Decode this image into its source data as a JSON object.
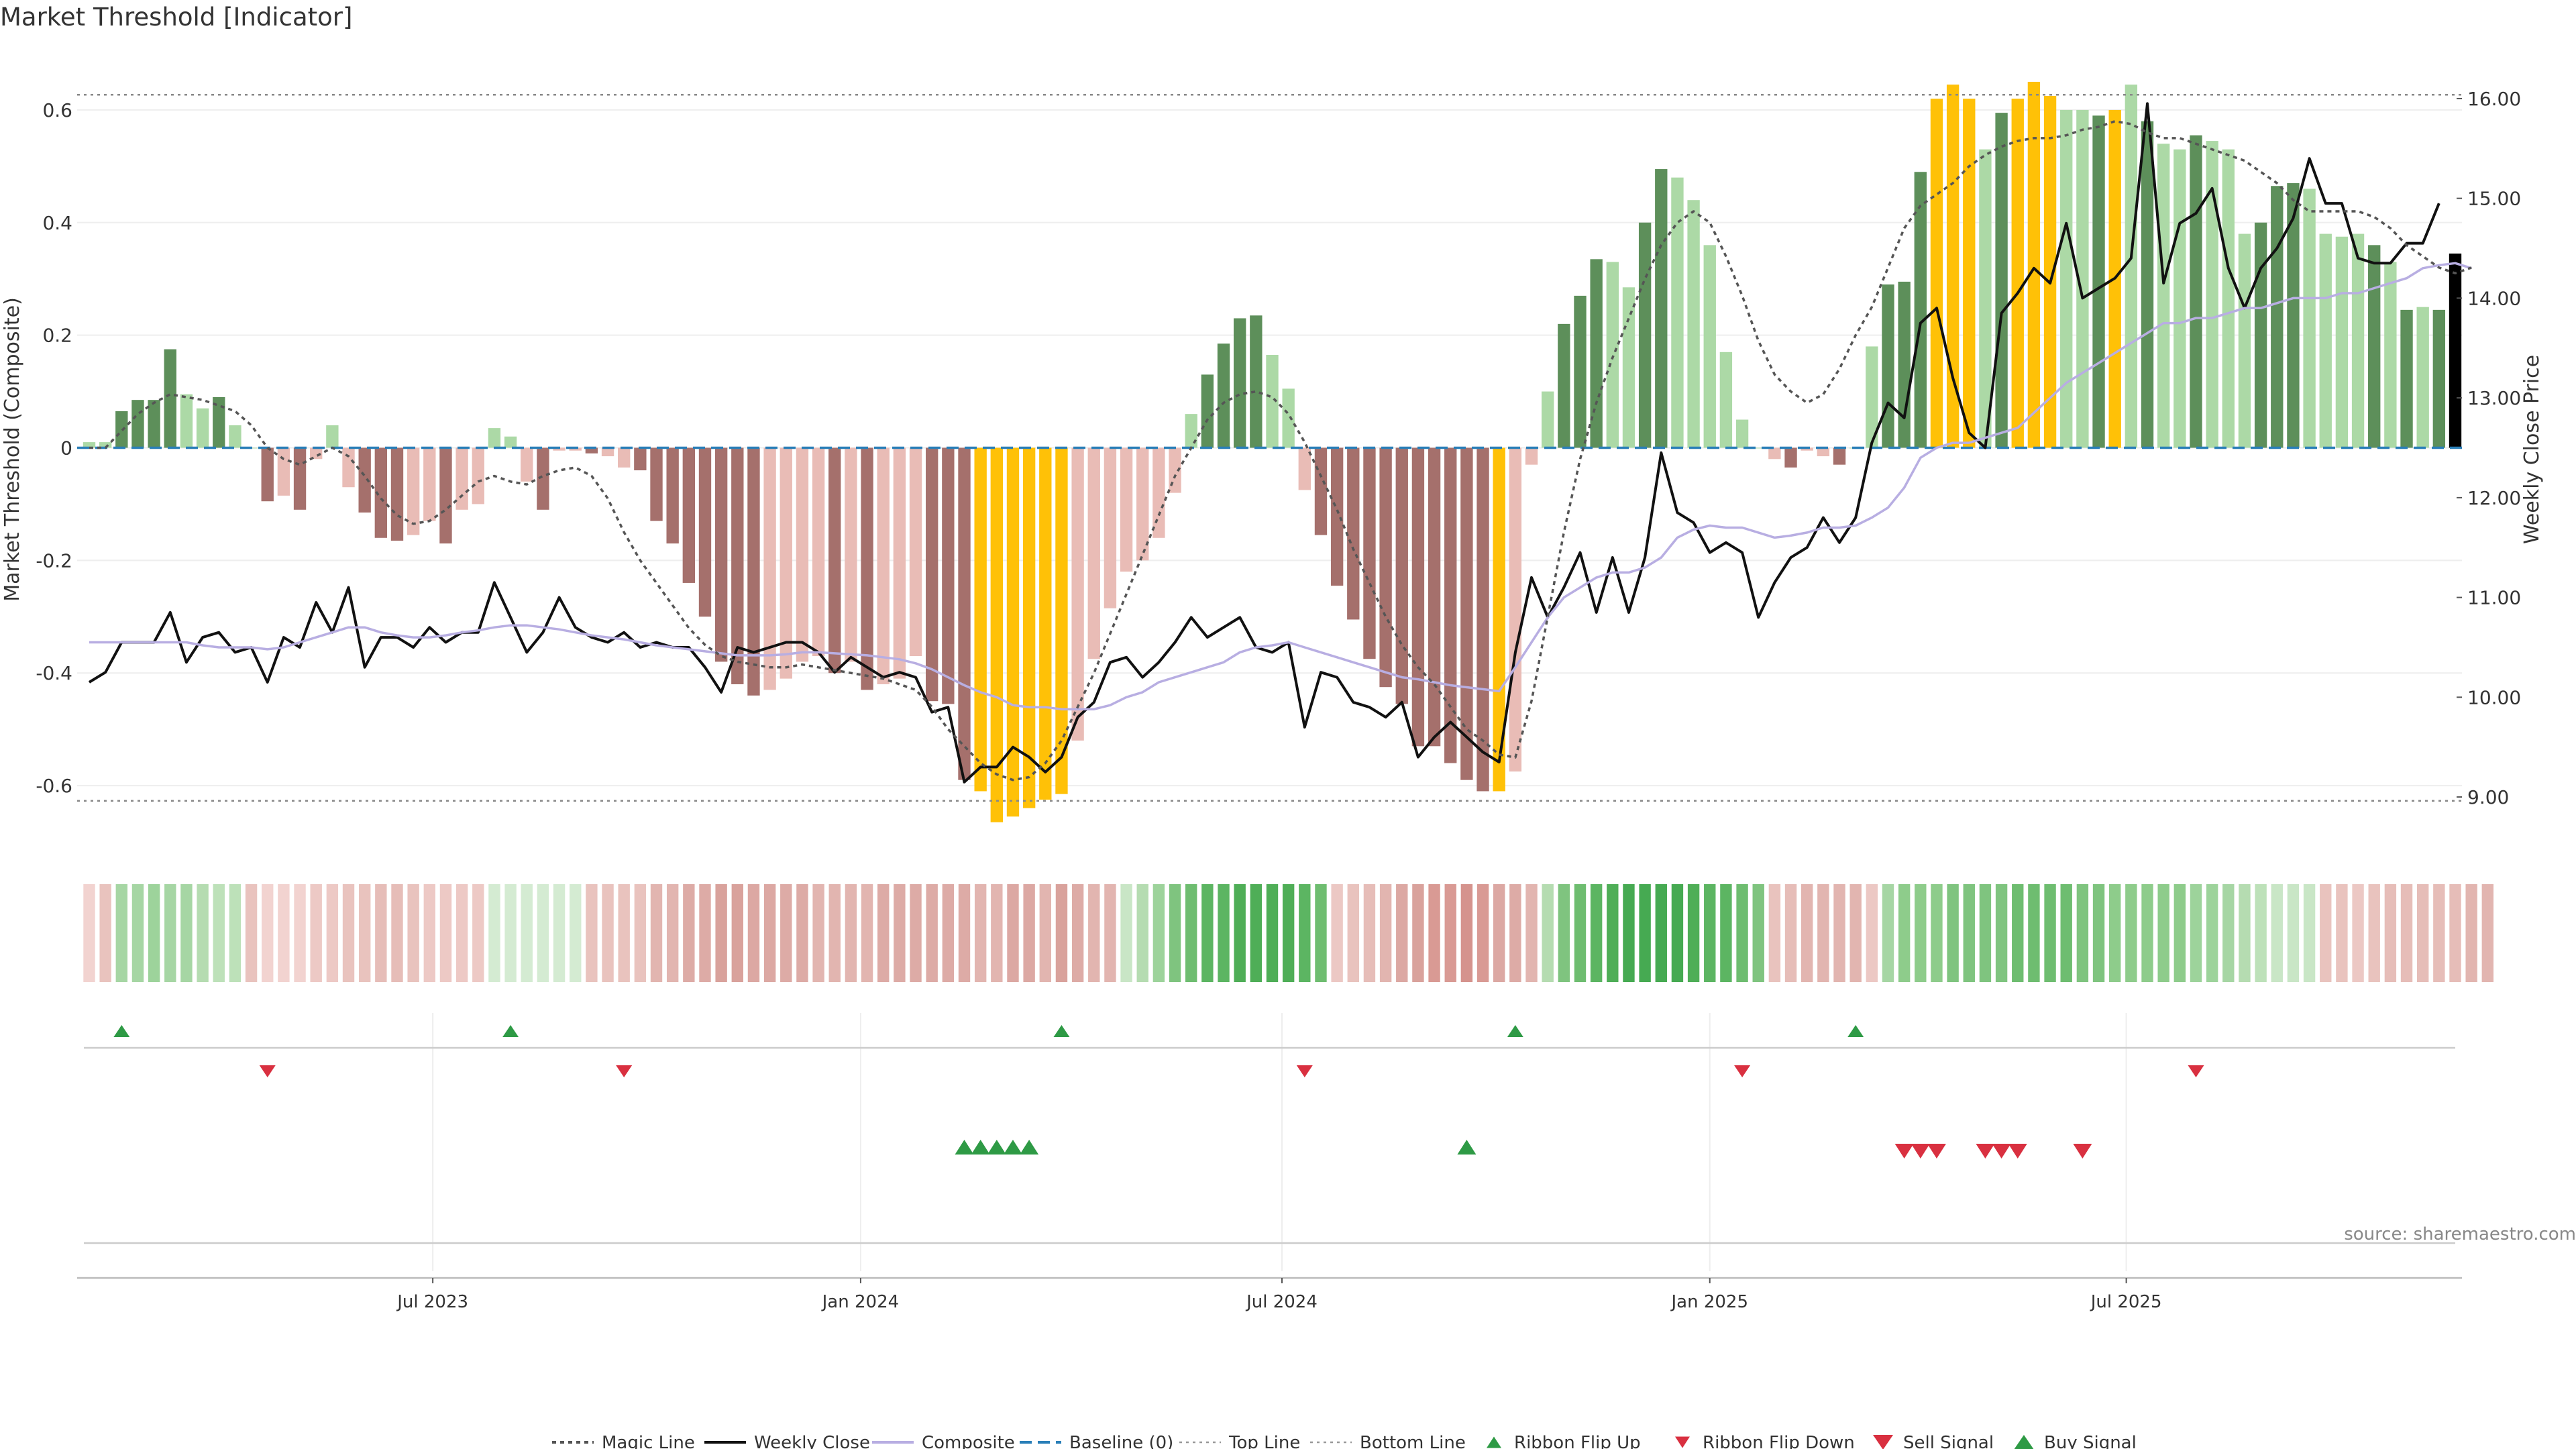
{
  "title": "Market Threshold [Indicator]",
  "source": "source: sharemaestro.com",
  "colors": {
    "buy_signal": "#2e9a45",
    "sell_signal": "#d93040",
    "yellow": "#ffc107",
    "dark_green": "#5d8f5a",
    "light_green": "#acd9a6",
    "dark_red": "#a5706c",
    "light_red": "#e9bcb6",
    "composite": "#b8aee2",
    "baseline": "#2a7fb8"
  },
  "chart_data": {
    "type": "bar",
    "ylabel_left": "Market Threshold (Composite)",
    "ylabel_right": "Weekly Close Price",
    "ylim_left": [
      -0.7,
      0.7
    ],
    "ylim_right": [
      8.55,
      16.45
    ],
    "left_ticks": [
      "-0.6",
      "-0.4",
      "-0.2",
      "0",
      "0.2",
      "0.4",
      "0.6"
    ],
    "right_ticks": [
      "9.00",
      "10.00",
      "11.00",
      "12.00",
      "13.00",
      "14.00",
      "15.00",
      "16.00"
    ],
    "x_ticks": [
      "Jul 2023",
      "Jan 2024",
      "Jul 2024",
      "Jan 2025",
      "Jul 2025"
    ],
    "x_tick_weeks": [
      21.2,
      47.6,
      73.6,
      100.0,
      125.7
    ],
    "top_line": 0.627,
    "bottom_line": -0.627,
    "grid": true,
    "legend": {
      "placement": "bottom-center",
      "items": [
        "Magic Line",
        "Weekly Close",
        "Composite",
        "Baseline (0)",
        "Top Line",
        "Bottom Line",
        "Ribbon Flip Up",
        "Ribbon Flip Down",
        "Sell Signal",
        "Buy Signal"
      ]
    },
    "bars": [
      0.01,
      0.01,
      0.065,
      0.085,
      0.085,
      0.175,
      0.095,
      0.07,
      0.09,
      0.04,
      0.0,
      -0.095,
      -0.085,
      -0.11,
      -0.02,
      0.04,
      -0.07,
      -0.115,
      -0.16,
      -0.165,
      -0.155,
      -0.13,
      -0.17,
      -0.11,
      -0.1,
      0.035,
      0.02,
      -0.06,
      -0.11,
      -0.005,
      -0.005,
      -0.01,
      -0.015,
      -0.035,
      -0.04,
      -0.13,
      -0.17,
      -0.24,
      -0.3,
      -0.38,
      -0.42,
      -0.44,
      -0.43,
      -0.41,
      -0.38,
      -0.37,
      -0.4,
      -0.38,
      -0.43,
      -0.42,
      -0.41,
      -0.37,
      -0.45,
      -0.455,
      -0.59,
      -0.61,
      -0.665,
      -0.655,
      -0.64,
      -0.625,
      -0.615,
      -0.52,
      -0.375,
      -0.285,
      -0.22,
      -0.2,
      -0.16,
      -0.08,
      0.06,
      0.13,
      0.185,
      0.23,
      0.235,
      0.165,
      0.105,
      -0.075,
      -0.155,
      -0.245,
      -0.305,
      -0.375,
      -0.425,
      -0.455,
      -0.53,
      -0.53,
      -0.56,
      -0.59,
      -0.61,
      -0.61,
      -0.575,
      -0.03,
      0.1,
      0.22,
      0.27,
      0.335,
      0.33,
      0.285,
      0.4,
      0.495,
      0.48,
      0.44,
      0.36,
      0.17,
      0.05,
      0.0,
      -0.02,
      -0.035,
      -0.005,
      -0.015,
      -0.03,
      0.0,
      0.18,
      0.29,
      0.295,
      0.49,
      0.62,
      0.645,
      0.62,
      0.53,
      0.595,
      0.62,
      0.65,
      0.625,
      0.6,
      0.6,
      0.59,
      0.6,
      0.645,
      0.58,
      0.54,
      0.53,
      0.555,
      0.545,
      0.53,
      0.38,
      0.4,
      0.465,
      0.47,
      0.46,
      0.38,
      0.375,
      0.38,
      0.36,
      0.33,
      0.245,
      0.25,
      0.245,
      0.345
    ],
    "bar_colors": [
      "light_green",
      "light_green",
      "dark_green",
      "dark_green",
      "dark_green",
      "dark_green",
      "light_green",
      "light_green",
      "dark_green",
      "light_green",
      "light_green",
      "dark_red",
      "light_red",
      "dark_red",
      "light_red",
      "light_green",
      "light_red",
      "dark_red",
      "dark_red",
      "dark_red",
      "light_red",
      "light_red",
      "dark_red",
      "light_red",
      "light_red",
      "light_green",
      "light_green",
      "light_red",
      "dark_red",
      "light_red",
      "light_red",
      "dark_red",
      "light_red",
      "light_red",
      "dark_red",
      "dark_red",
      "dark_red",
      "dark_red",
      "dark_red",
      "dark_red",
      "dark_red",
      "dark_red",
      "light_red",
      "light_red",
      "light_red",
      "light_red",
      "dark_red",
      "light_red",
      "dark_red",
      "light_red",
      "light_red",
      "light_red",
      "dark_red",
      "dark_red",
      "dark_red",
      "yellow",
      "yellow",
      "yellow",
      "yellow",
      "yellow",
      "yellow",
      "light_red",
      "light_red",
      "light_red",
      "light_red",
      "light_red",
      "light_red",
      "light_red",
      "light_green",
      "dark_green",
      "dark_green",
      "dark_green",
      "dark_green",
      "light_green",
      "light_green",
      "light_red",
      "dark_red",
      "dark_red",
      "dark_red",
      "dark_red",
      "dark_red",
      "dark_red",
      "dark_red",
      "dark_red",
      "dark_red",
      "dark_red",
      "dark_red",
      "yellow",
      "light_red",
      "light_red",
      "light_green",
      "dark_green",
      "dark_green",
      "dark_green",
      "light_green",
      "light_green",
      "dark_green",
      "dark_green",
      "light_green",
      "light_green",
      "light_green",
      "light_green",
      "light_green",
      "light_green",
      "light_red",
      "dark_red",
      "light_red",
      "light_red",
      "dark_red",
      "light_green",
      "light_green",
      "dark_green",
      "dark_green",
      "dark_green",
      "yellow",
      "yellow",
      "yellow",
      "light_green",
      "dark_green",
      "yellow",
      "yellow",
      "yellow",
      "light_green",
      "light_green",
      "dark_green",
      "yellow",
      "light_green",
      "dark_green",
      "light_green",
      "light_green",
      "dark_green",
      "light_green",
      "light_green",
      "light_green",
      "dark_green",
      "dark_green",
      "dark_green",
      "light_green",
      "light_green",
      "light_green",
      "light_green",
      "dark_green",
      "light_green",
      "dark_green",
      "light_green",
      "dark_green"
    ],
    "series": [
      {
        "name": "Weekly Close",
        "axis": "right",
        "values": [
          10.15,
          10.25,
          10.55,
          10.55,
          10.55,
          10.85,
          10.35,
          10.6,
          10.65,
          10.45,
          10.5,
          10.15,
          10.6,
          10.5,
          10.95,
          10.65,
          11.1,
          10.3,
          10.6,
          10.6,
          10.5,
          10.7,
          10.55,
          10.65,
          10.65,
          11.15,
          10.8,
          10.45,
          10.65,
          11.0,
          10.7,
          10.6,
          10.55,
          10.65,
          10.5,
          10.55,
          10.5,
          10.5,
          10.3,
          10.05,
          10.5,
          10.45,
          10.5,
          10.55,
          10.55,
          10.45,
          10.25,
          10.4,
          10.3,
          10.2,
          10.25,
          10.2,
          9.85,
          9.9,
          9.15,
          9.3,
          9.3,
          9.5,
          9.4,
          9.25,
          9.4,
          9.8,
          9.95,
          10.35,
          10.4,
          10.2,
          10.35,
          10.55,
          10.8,
          10.6,
          10.7,
          10.8,
          10.5,
          10.45,
          10.55,
          9.7,
          10.25,
          10.2,
          9.95,
          9.9,
          9.8,
          9.95,
          9.4,
          9.6,
          9.75,
          9.6,
          9.45,
          9.35,
          10.45,
          11.2,
          10.8,
          11.1,
          11.45,
          10.85,
          11.4,
          10.85,
          11.4,
          12.45,
          11.85,
          11.75,
          11.45,
          11.55,
          11.45,
          10.8,
          11.15,
          11.4,
          11.5,
          11.8,
          11.55,
          11.8,
          12.55,
          12.95,
          12.8,
          13.75,
          13.9,
          13.2,
          12.65,
          12.5,
          13.85,
          14.05,
          14.3,
          14.15,
          14.75,
          14.0,
          14.1,
          14.2,
          14.4,
          15.95,
          14.15,
          14.75,
          14.85,
          15.1,
          14.3,
          13.9,
          14.3,
          14.5,
          14.8,
          15.4,
          14.95,
          14.95,
          14.4,
          14.35,
          14.35,
          14.55,
          14.55,
          14.95
        ],
        "color": "#111111"
      },
      {
        "name": "Composite",
        "axis": "right",
        "values": [
          10.55,
          10.55,
          10.55,
          10.55,
          10.55,
          10.55,
          10.55,
          10.52,
          10.5,
          10.5,
          10.5,
          10.48,
          10.5,
          10.55,
          10.6,
          10.65,
          10.7,
          10.7,
          10.65,
          10.62,
          10.6,
          10.6,
          10.62,
          10.65,
          10.67,
          10.7,
          10.72,
          10.72,
          10.7,
          10.68,
          10.65,
          10.62,
          10.6,
          10.58,
          10.55,
          10.52,
          10.5,
          10.48,
          10.46,
          10.44,
          10.42,
          10.42,
          10.42,
          10.43,
          10.45,
          10.45,
          10.44,
          10.43,
          10.42,
          10.4,
          10.38,
          10.34,
          10.28,
          10.2,
          10.12,
          10.05,
          10.0,
          9.92,
          9.9,
          9.9,
          9.88,
          9.88,
          9.88,
          9.92,
          10.0,
          10.05,
          10.15,
          10.2,
          10.25,
          10.3,
          10.35,
          10.45,
          10.5,
          10.52,
          10.55,
          10.5,
          10.45,
          10.4,
          10.35,
          10.3,
          10.25,
          10.2,
          10.18,
          10.15,
          10.12,
          10.1,
          10.08,
          10.06,
          10.3,
          10.55,
          10.8,
          11.0,
          11.1,
          11.2,
          11.25,
          11.25,
          11.3,
          11.4,
          11.6,
          11.68,
          11.72,
          11.7,
          11.7,
          11.65,
          11.6,
          11.62,
          11.65,
          11.7,
          11.7,
          11.72,
          11.8,
          11.9,
          12.1,
          12.4,
          12.5,
          12.55,
          12.55,
          12.6,
          12.65,
          12.7,
          12.85,
          13.0,
          13.15,
          13.25,
          13.35,
          13.45,
          13.55,
          13.65,
          13.75,
          13.75,
          13.8,
          13.8,
          13.85,
          13.9,
          13.9,
          13.95,
          14.0,
          14.0,
          14.0,
          14.05,
          14.05,
          14.1,
          14.15,
          14.2,
          14.3,
          14.33,
          14.35,
          14.3
        ],
        "color": "#b8aee2"
      },
      {
        "name": "Magic Line",
        "axis": "left",
        "values": [
          0.0,
          0.0,
          0.03,
          0.06,
          0.08,
          0.095,
          0.09,
          0.085,
          0.075,
          0.065,
          0.04,
          0.0,
          -0.02,
          -0.03,
          -0.015,
          0.0,
          -0.015,
          -0.05,
          -0.09,
          -0.12,
          -0.135,
          -0.13,
          -0.11,
          -0.085,
          -0.06,
          -0.05,
          -0.06,
          -0.065,
          -0.05,
          -0.04,
          -0.035,
          -0.05,
          -0.09,
          -0.15,
          -0.2,
          -0.24,
          -0.28,
          -0.32,
          -0.35,
          -0.37,
          -0.38,
          -0.385,
          -0.39,
          -0.39,
          -0.385,
          -0.39,
          -0.395,
          -0.4,
          -0.405,
          -0.41,
          -0.42,
          -0.43,
          -0.46,
          -0.5,
          -0.53,
          -0.56,
          -0.58,
          -0.59,
          -0.585,
          -0.56,
          -0.52,
          -0.46,
          -0.4,
          -0.33,
          -0.26,
          -0.19,
          -0.12,
          -0.05,
          0.0,
          0.05,
          0.08,
          0.095,
          0.1,
          0.09,
          0.06,
          0.01,
          -0.05,
          -0.11,
          -0.18,
          -0.24,
          -0.3,
          -0.35,
          -0.39,
          -0.42,
          -0.46,
          -0.5,
          -0.52,
          -0.545,
          -0.55,
          -0.45,
          -0.3,
          -0.15,
          -0.02,
          0.08,
          0.16,
          0.23,
          0.3,
          0.36,
          0.4,
          0.42,
          0.4,
          0.34,
          0.27,
          0.19,
          0.13,
          0.1,
          0.08,
          0.095,
          0.14,
          0.2,
          0.25,
          0.32,
          0.39,
          0.43,
          0.45,
          0.47,
          0.5,
          0.52,
          0.535,
          0.545,
          0.55,
          0.55,
          0.555,
          0.565,
          0.57,
          0.58,
          0.575,
          0.56,
          0.55,
          0.55,
          0.54,
          0.53,
          0.52,
          0.51,
          0.49,
          0.47,
          0.44,
          0.42,
          0.42,
          0.42,
          0.42,
          0.41,
          0.39,
          0.36,
          0.34,
          0.32,
          0.31,
          0.32
        ],
        "color": "#555555"
      }
    ],
    "ribbon_colors": [
      "#f2d3d0",
      "#e9c3be",
      "#a6d6a4",
      "#a6d6a4",
      "#9dd39b",
      "#a6d6a4",
      "#a6d6a4",
      "#b5dcb1",
      "#bde1b9",
      "#bde1b9",
      "#e9c3be",
      "#f2d3d0",
      "#f2d3d0",
      "#f2d3d0",
      "#edc9c5",
      "#edc9c5",
      "#e9c3be",
      "#e9c3be",
      "#e6bdb8",
      "#e6bdb8",
      "#e9c3be",
      "#edc9c5",
      "#edc9c5",
      "#edc9c5",
      "#edc9c5",
      "#d4ebd2",
      "#d4ebd2",
      "#d4ebd2",
      "#d4ebd2",
      "#d4ebd2",
      "#d4ebd2",
      "#e9c3be",
      "#e9c3be",
      "#e9c3be",
      "#e9c3be",
      "#e2b5b0",
      "#e2b5b0",
      "#ddaba6",
      "#ddaba6",
      "#d9a29c",
      "#d9a29c",
      "#dca8a3",
      "#dca8a3",
      "#ddaba6",
      "#ddaba6",
      "#e2b5b0",
      "#e2b5b0",
      "#e2b5b0",
      "#e2b5b0",
      "#ddaba6",
      "#ddaba6",
      "#ddaba6",
      "#ddaba6",
      "#ddaba6",
      "#ddaba6",
      "#e2b5b0",
      "#e2b5b0",
      "#dca8a3",
      "#dca8a3",
      "#e2b5b0",
      "#d9a29c",
      "#ddaba6",
      "#e2b5b0",
      "#e2b5b0",
      "#c9e6c6",
      "#b5dcb1",
      "#9dd39b",
      "#7fc47f",
      "#6ebd70",
      "#5cb562",
      "#5cb562",
      "#4fae57",
      "#4fae57",
      "#4fae57",
      "#4fae57",
      "#5cb562",
      "#6ebd70",
      "#ecc8c4",
      "#e9c3be",
      "#e6bdb8",
      "#e2b5b0",
      "#dca8a3",
      "#d9a29c",
      "#d99a94",
      "#d99a94",
      "#d5938d",
      "#d99a94",
      "#dca8a3",
      "#ddaba6",
      "#e2b5b0",
      "#b5dcb1",
      "#7fc47f",
      "#6ebd70",
      "#5cb562",
      "#4fae57",
      "#46aa52",
      "#46aa52",
      "#46aa52",
      "#46aa52",
      "#4fae57",
      "#5cb562",
      "#5cb562",
      "#6ebd70",
      "#7fc47f",
      "#e9c3be",
      "#e6bdb8",
      "#e2b5b0",
      "#e2b5b0",
      "#e2b5b0",
      "#e2b5b0",
      "#ecc8c4",
      "#a6d6a4",
      "#8ecc8b",
      "#8ecc8b",
      "#8ecc8b",
      "#7fc47f",
      "#7fc47f",
      "#7fc47f",
      "#7fc47f",
      "#6ebd70",
      "#6ebd70",
      "#6ebd70",
      "#6ebd70",
      "#7fc47f",
      "#7fc47f",
      "#8ecc8b",
      "#8ecc8b",
      "#8ecc8b",
      "#8ecc8b",
      "#8ecc8b",
      "#9dd39b",
      "#9dd39b",
      "#a6d6a4",
      "#b5dcb1",
      "#bde1b9",
      "#c9e6c6",
      "#c9e6c6",
      "#c9e6c6",
      "#e9c3be",
      "#e9c3be",
      "#ecc8c4",
      "#e9c3be",
      "#e6bdb8",
      "#e6bdb8",
      "#e6bdb8",
      "#e6bdb8",
      "#e6bdb8",
      "#e2b5b0",
      "#e2b5b0"
    ],
    "ribbon_flip_up": [
      2,
      26,
      60,
      88,
      109
    ],
    "ribbon_flip_down": [
      11,
      33,
      75,
      102,
      130
    ],
    "buy_signals": [
      54,
      55,
      56,
      57,
      58,
      85
    ],
    "sell_signals": [
      112,
      113,
      114,
      117,
      118,
      119,
      123
    ]
  }
}
